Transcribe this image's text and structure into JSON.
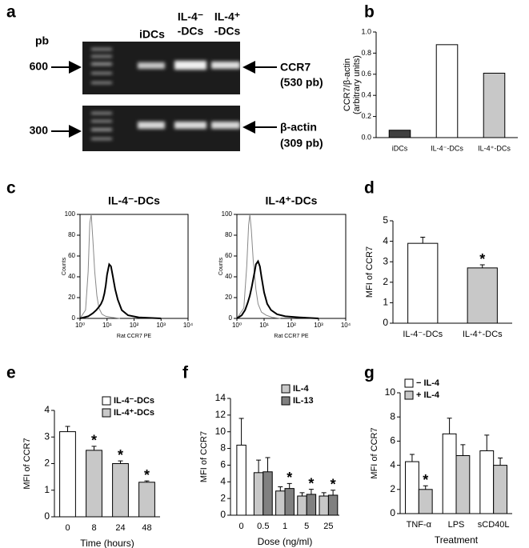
{
  "gel": {
    "panel": "a",
    "unit": "pb",
    "markers": [
      600,
      300
    ],
    "lanes": [
      [
        "iDCs"
      ],
      [
        "IL-4⁻",
        "-DCs"
      ],
      [
        "IL-4⁺",
        "-DCs"
      ]
    ],
    "bands": [
      {
        "name": "CCR7",
        "size": "(530 pb)"
      },
      {
        "name": "β-actin",
        "size": "(309 pb)"
      }
    ]
  },
  "chart_data": [
    {
      "type": "bar",
      "panel": "b",
      "ylabel": [
        "CCR7/β-actin",
        "(arbitrary units)"
      ],
      "categories": [
        "iDCs",
        "IL-4⁻-DCs",
        "IL-4⁺-DCs"
      ],
      "series": [
        {
          "color": [
            "#404040",
            "#ffffff",
            "#c8c8c8"
          ],
          "values": [
            0.07,
            0.88,
            0.61
          ]
        }
      ],
      "ylim": [
        0,
        1
      ],
      "yticks": [
        {
          "value": 0,
          "label": "0.0"
        },
        0.2,
        0.4,
        0.6,
        0.8,
        {
          "value": 1,
          "label": "1.0"
        }
      ]
    },
    {
      "type": "line",
      "panel": "c",
      "title": "IL-4⁻-DCs",
      "ylabel": "Counts",
      "xlabel": "Rat CCR7 PE",
      "frame": true,
      "xscale": "log",
      "xlim": [
        1,
        10000
      ],
      "xticks": [
        {
          "value": 1,
          "label": "10⁰"
        },
        {
          "value": 10,
          "label": "10¹"
        },
        {
          "value": 100,
          "label": "10²"
        },
        {
          "value": 1000,
          "label": "10³"
        },
        {
          "value": 10000,
          "label": "10⁴"
        }
      ],
      "ylim": [
        0,
        100
      ],
      "yticks": [
        0,
        20,
        40,
        60,
        80,
        100
      ],
      "series": [
        {
          "color": "#888888",
          "line_width": 1,
          "x": [
            1,
            1.6,
            2,
            2.3,
            2.6,
            3,
            3.5,
            4.2,
            5,
            6.5,
            9,
            15,
            30
          ],
          "values": [
            0,
            8,
            45,
            92,
            100,
            75,
            45,
            22,
            10,
            4,
            2,
            1,
            0
          ]
        },
        {
          "color": "#000000",
          "line_width": 2,
          "x": [
            1,
            2,
            3,
            4,
            5,
            6,
            7,
            8,
            9,
            10,
            12,
            14,
            16,
            20,
            25,
            35,
            60,
            150,
            1000
          ],
          "values": [
            0,
            2,
            5,
            8,
            11,
            14,
            18,
            24,
            32,
            42,
            52,
            50,
            42,
            28,
            18,
            8,
            3,
            1,
            0
          ]
        }
      ]
    },
    {
      "type": "line",
      "title": "IL-4⁺-DCs",
      "ylabel": "Counts",
      "xlabel": "Rat CCR7 PE",
      "frame": true,
      "xscale": "log",
      "xlim": [
        1,
        10000
      ],
      "xticks": [
        {
          "value": 1,
          "label": "10⁰"
        },
        {
          "value": 10,
          "label": "10¹"
        },
        {
          "value": 100,
          "label": "10²"
        },
        {
          "value": 1000,
          "label": "10³"
        },
        {
          "value": 10000,
          "label": "10⁴"
        }
      ],
      "ylim": [
        0,
        100
      ],
      "yticks": [
        0,
        20,
        40,
        60,
        80,
        100
      ],
      "series": [
        {
          "color": "#888888",
          "line_width": 1,
          "x": [
            1,
            1.8,
            2.3,
            2.7,
            3,
            3.4,
            4,
            5,
            6,
            8,
            12,
            20,
            40
          ],
          "values": [
            0,
            10,
            50,
            90,
            100,
            85,
            55,
            28,
            14,
            6,
            3,
            1,
            0
          ]
        },
        {
          "color": "#000000",
          "line_width": 2,
          "x": [
            1,
            1.5,
            2,
            2.5,
            3,
            3.5,
            4,
            4.5,
            5,
            6,
            7,
            8,
            10,
            13,
            18,
            30,
            60,
            200,
            1000
          ],
          "values": [
            0,
            3,
            8,
            15,
            22,
            30,
            38,
            45,
            52,
            55,
            50,
            40,
            25,
            14,
            8,
            4,
            2,
            1,
            0
          ]
        }
      ]
    },
    {
      "type": "bar",
      "panel": "d",
      "ylabel": "MFI of CCR7",
      "categories": [
        "IL-4⁻-DCs",
        "IL-4⁺-DCs"
      ],
      "series": [
        {
          "color": [
            "#ffffff",
            "#c8c8c8"
          ],
          "values": [
            3.9,
            2.7
          ],
          "errors": [
            0.3,
            0.15
          ],
          "annotations": [
            null,
            "*"
          ]
        }
      ],
      "ylim": [
        0,
        5
      ],
      "yticks": [
        0,
        1,
        2,
        3,
        4,
        5
      ]
    },
    {
      "type": "bar",
      "panel": "e",
      "ylabel": "MFI of CCR7",
      "xlabel": "Time (hours)",
      "legend": "upper right",
      "categories": [
        "0",
        "8",
        "24",
        "48"
      ],
      "series": [
        {
          "name": "IL-4⁻-DCs",
          "color": "#ffffff",
          "values": [
            3.2,
            null,
            null,
            null
          ],
          "errors": [
            0.2,
            null,
            null,
            null
          ]
        },
        {
          "name": "IL-4⁺-DCs",
          "color": "#c8c8c8",
          "values": [
            null,
            2.5,
            2.0,
            1.3
          ],
          "errors": [
            null,
            0.15,
            0.1,
            0.05
          ],
          "annotations": [
            null,
            "*",
            "*",
            "*"
          ]
        }
      ],
      "ylim": [
        0,
        4
      ],
      "yticks": [
        0,
        1,
        2,
        3,
        4
      ]
    },
    {
      "type": "bar",
      "panel": "f",
      "ylabel": "MFI of CCR7",
      "xlabel": "Dose (ng/ml)",
      "legend": "upper right",
      "categories": [
        "0",
        "0.5",
        "1",
        "5",
        "25"
      ],
      "series": [
        {
          "color": "#ffffff",
          "values": [
            8.4,
            null,
            null,
            null,
            null
          ],
          "errors": [
            3.2,
            null,
            null,
            null,
            null
          ]
        },
        {
          "name": "IL-4",
          "color": "#c8c8c8",
          "values": [
            null,
            5.1,
            2.9,
            2.3,
            2.3
          ],
          "errors": [
            null,
            1.5,
            0.5,
            0.4,
            0.4
          ]
        },
        {
          "name": "IL-13",
          "color": "#808080",
          "values": [
            null,
            5.2,
            3.2,
            2.5,
            2.4
          ],
          "errors": [
            null,
            1.7,
            0.6,
            0.6,
            0.6
          ],
          "annotations": [
            null,
            null,
            "*",
            "*",
            "*"
          ]
        }
      ],
      "ylim": [
        0,
        14
      ],
      "yticks": [
        0,
        2,
        4,
        6,
        8,
        10,
        12,
        14
      ]
    },
    {
      "type": "bar",
      "panel": "g",
      "ylabel": "MFI of CCR7",
      "xlabel": "Treatment",
      "legend": "upper left",
      "categories": [
        "TNF-α",
        "LPS",
        "sCD40L"
      ],
      "series": [
        {
          "name": "− IL-4",
          "color": "#ffffff",
          "values": [
            4.3,
            6.6,
            5.2
          ],
          "errors": [
            0.6,
            1.3,
            1.3
          ]
        },
        {
          "name": "+ IL-4",
          "color": "#c8c8c8",
          "values": [
            2.0,
            4.8,
            4.0
          ],
          "errors": [
            0.3,
            0.9,
            0.6
          ],
          "annotations": [
            "*",
            null,
            null
          ]
        }
      ],
      "ylim": [
        0,
        10
      ],
      "yticks": [
        0,
        2,
        4,
        6,
        8,
        10
      ]
    }
  ]
}
